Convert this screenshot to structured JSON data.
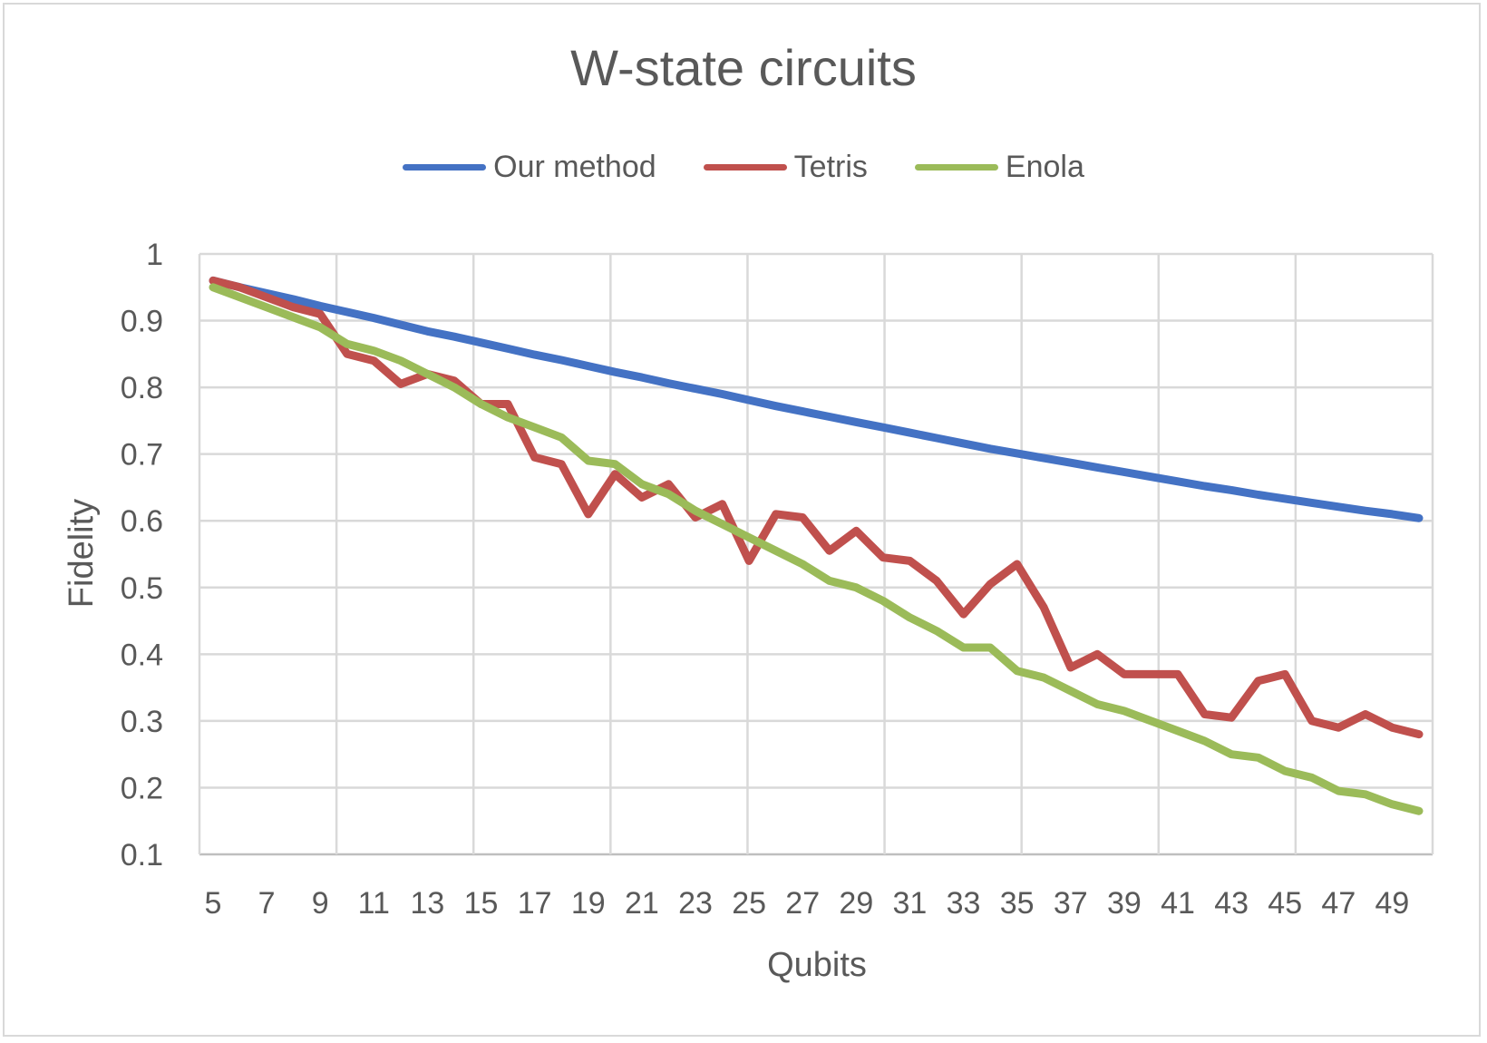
{
  "chart_data": {
    "type": "line",
    "title": "W-state circuits",
    "xlabel": "Qubits",
    "ylabel": "Fidelity",
    "ylim": [
      0.1,
      1
    ],
    "xlim": [
      5,
      50
    ],
    "grid": true,
    "legend_position": "top",
    "x": [
      5,
      6,
      7,
      8,
      9,
      10,
      11,
      12,
      13,
      14,
      15,
      16,
      17,
      18,
      19,
      20,
      21,
      22,
      23,
      24,
      25,
      26,
      27,
      28,
      29,
      30,
      31,
      32,
      33,
      34,
      35,
      36,
      37,
      38,
      39,
      40,
      41,
      42,
      43,
      44,
      45,
      46,
      47,
      48,
      49,
      50
    ],
    "x_tick_labels": [
      "5",
      "7",
      "9",
      "11",
      "13",
      "15",
      "17",
      "19",
      "21",
      "23",
      "25",
      "27",
      "29",
      "31",
      "33",
      "35",
      "37",
      "39",
      "41",
      "43",
      "45",
      "47",
      "49"
    ],
    "y_tick_labels": [
      "0.1",
      "0.2",
      "0.3",
      "0.4",
      "0.5",
      "0.6",
      "0.7",
      "0.8",
      "0.9",
      "1"
    ],
    "series": [
      {
        "name": "Our method",
        "color": "#4472c4",
        "values": [
          0.96,
          0.95,
          0.941,
          0.932,
          0.922,
          0.913,
          0.904,
          0.894,
          0.884,
          0.876,
          0.867,
          0.858,
          0.849,
          0.841,
          0.832,
          0.823,
          0.815,
          0.806,
          0.798,
          0.79,
          0.781,
          0.772,
          0.764,
          0.756,
          0.748,
          0.74,
          0.732,
          0.724,
          0.716,
          0.708,
          0.701,
          0.694,
          0.687,
          0.68,
          0.673,
          0.666,
          0.659,
          0.652,
          0.646,
          0.639,
          0.633,
          0.627,
          0.621,
          0.615,
          0.61,
          0.604
        ]
      },
      {
        "name": "Tetris",
        "color": "#c0504d",
        "values": [
          0.96,
          0.95,
          0.935,
          0.92,
          0.91,
          0.85,
          0.84,
          0.805,
          0.82,
          0.81,
          0.775,
          0.775,
          0.695,
          0.685,
          0.61,
          0.67,
          0.635,
          0.655,
          0.605,
          0.625,
          0.54,
          0.61,
          0.605,
          0.555,
          0.585,
          0.545,
          0.54,
          0.51,
          0.46,
          0.505,
          0.535,
          0.47,
          0.38,
          0.4,
          0.37,
          0.37,
          0.37,
          0.31,
          0.305,
          0.36,
          0.37,
          0.3,
          0.29,
          0.31,
          0.29,
          0.28
        ]
      },
      {
        "name": "Enola",
        "color": "#9bbb59",
        "values": [
          0.95,
          0.935,
          0.92,
          0.905,
          0.89,
          0.865,
          0.855,
          0.84,
          0.82,
          0.8,
          0.775,
          0.755,
          0.74,
          0.725,
          0.69,
          0.685,
          0.655,
          0.64,
          0.615,
          0.595,
          0.575,
          0.555,
          0.535,
          0.51,
          0.5,
          0.48,
          0.455,
          0.435,
          0.41,
          0.41,
          0.375,
          0.365,
          0.345,
          0.325,
          0.315,
          0.3,
          0.285,
          0.27,
          0.25,
          0.245,
          0.225,
          0.215,
          0.195,
          0.19,
          0.175,
          0.165
        ]
      }
    ]
  }
}
